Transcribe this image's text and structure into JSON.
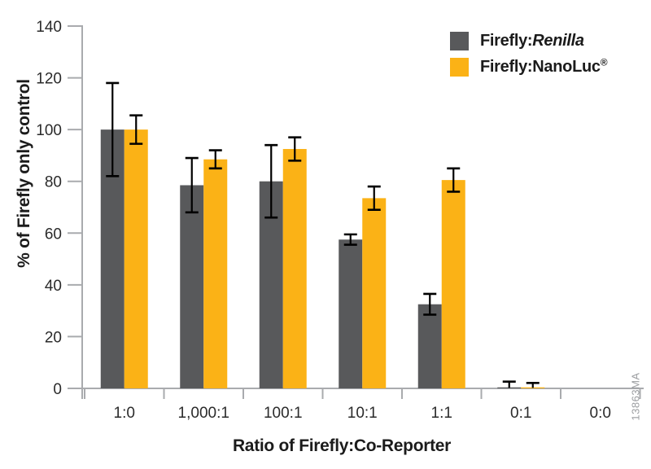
{
  "figure": {
    "watermark": "13863MA"
  },
  "legend": {
    "items": [
      {
        "prefix": "Firefly:",
        "emphasis": "Renilla"
      },
      {
        "prefix": "Firefly:NanoLuc",
        "sup": "®"
      }
    ]
  },
  "chart_data": {
    "type": "bar",
    "title": "",
    "xlabel": "Ratio of Firefly:Co-Reporter",
    "ylabel": "% of Firefly only control",
    "categories": [
      "1:0",
      "1,000:1",
      "100:1",
      "10:1",
      "1:1",
      "0:1",
      "0:0"
    ],
    "series": [
      {
        "name": "Firefly:Renilla",
        "color": "#58595B",
        "values": [
          100,
          78.5,
          80,
          57.5,
          32.5,
          0.4,
          0
        ],
        "errors": [
          18,
          10.5,
          14,
          2,
          4,
          2.2,
          0
        ]
      },
      {
        "name": "Firefly:NanoLuc®",
        "color": "#FBB216",
        "values": [
          100,
          88.5,
          92.5,
          73.5,
          80.5,
          0.4,
          0
        ],
        "errors": [
          5.5,
          3.5,
          4.5,
          4.5,
          4.5,
          1.7,
          0
        ]
      }
    ],
    "ylim": [
      0,
      140
    ],
    "ytick_step": 20,
    "grid": false,
    "legend_position": "top-right",
    "error_bars": true,
    "axis_color": "#A9ABAE",
    "error_bar_color": "#000000",
    "tick_label_color": "#2b2b2b"
  }
}
